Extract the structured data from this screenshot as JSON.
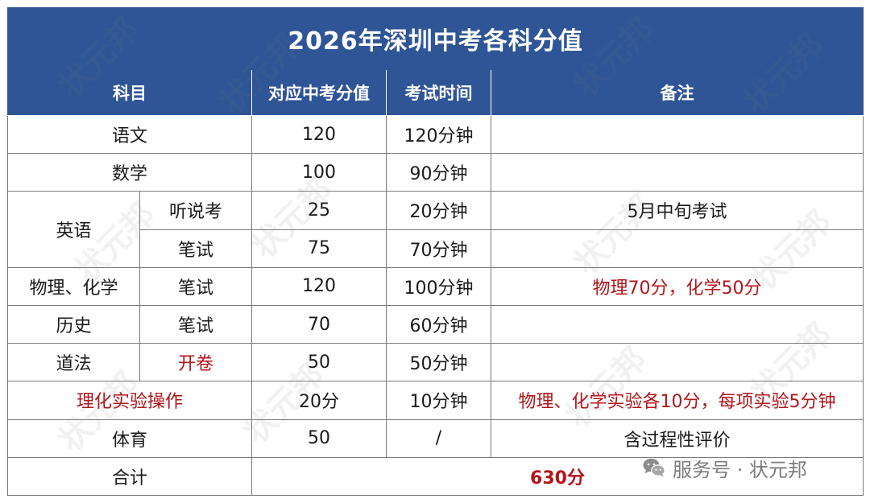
{
  "title": "2026年深圳中考各科分值",
  "header": {
    "subject": "科目",
    "score": "对应中考分值",
    "time": "考试时间",
    "note": "备注"
  },
  "rows": {
    "chinese": {
      "subject": "语文",
      "score": "120",
      "time": "120分钟",
      "note": ""
    },
    "math": {
      "subject": "数学",
      "score": "100",
      "time": "90分钟",
      "note": ""
    },
    "english": {
      "subject": "英语",
      "listening": {
        "part": "听说考",
        "score": "25",
        "time": "20分钟",
        "note": "5月中旬考试"
      },
      "written": {
        "part": "笔试",
        "score": "75",
        "time": "70分钟",
        "note": ""
      }
    },
    "physchem": {
      "subject": "物理、化学",
      "part": "笔试",
      "score": "120",
      "time": "100分钟",
      "note": "物理70分，化学50分"
    },
    "history": {
      "subject": "历史",
      "part": "笔试",
      "score": "70",
      "time": "60分钟",
      "note": ""
    },
    "law": {
      "subject": "道法",
      "part": "开卷",
      "score": "50",
      "time": "50分钟",
      "note": ""
    },
    "lab": {
      "subject": "理化实验操作",
      "score": "20分",
      "time": "10分钟",
      "note": "物理、化学实验各10分，每项实验5分钟"
    },
    "pe": {
      "subject": "体育",
      "score": "50",
      "time": "/",
      "note": "含过程性评价"
    },
    "total": {
      "subject": "合计",
      "value": "630分"
    }
  },
  "watermark": {
    "text": "状元邦"
  },
  "footer": {
    "source": "服务号 · 状元邦",
    "icon": "wechat-icon"
  },
  "colors": {
    "header_bg": "#2f5597",
    "accent_red": "#b2151b",
    "border": "#7a7a7a"
  }
}
